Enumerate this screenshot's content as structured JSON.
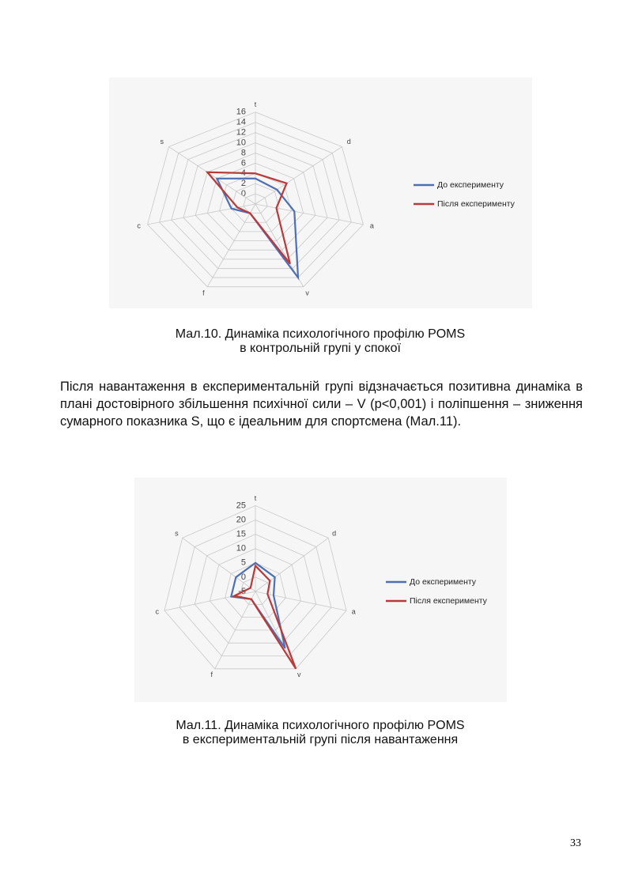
{
  "chart_data": [
    {
      "type": "radar",
      "categories": [
        "t",
        "d",
        "a",
        "v",
        "f",
        "c",
        "s"
      ],
      "ylim": [
        -2,
        16
      ],
      "yticks": [
        0,
        2,
        4,
        6,
        8,
        10,
        12,
        14,
        16
      ],
      "grid": true,
      "legend": "right",
      "series": [
        {
          "name": "До експерименту",
          "color": "#4f6fb5",
          "values": [
            3,
            2.5,
            4.5,
            14,
            0,
            2,
            6
          ]
        },
        {
          "name": "Після експерименту",
          "color": "#b83a3a",
          "values": [
            4,
            4.5,
            1.5,
            11,
            0,
            1,
            8
          ]
        }
      ],
      "caption": [
        "Мал.10. Динаміка психологічного профілю POMS",
        "в контрольній групі у спокої"
      ]
    },
    {
      "type": "radar",
      "categories": [
        "t",
        "d",
        "a",
        "v",
        "f",
        "c",
        "s"
      ],
      "ylim": [
        -5,
        25
      ],
      "yticks": [
        -5,
        0,
        5,
        10,
        15,
        20,
        25
      ],
      "grid": true,
      "legend": "right",
      "series": [
        {
          "name": "До експерименту",
          "color": "#4f6fb5",
          "values": [
            5,
            3,
            1,
            17,
            -2,
            3,
            3
          ]
        },
        {
          "name": "Після експерименту",
          "color": "#b83a3a",
          "values": [
            4,
            1,
            -1,
            25,
            -2,
            2,
            -3
          ]
        }
      ],
      "caption": [
        "Мал.11. Динаміка психологічного профілю POMS",
        "в експериментальній групі після навантаження"
      ]
    }
  ],
  "paragraph": "Після навантаження в експериментальній групі відзначається позитивна динаміка в плані достовірного збільшення психічної сили – V (p<0,001) і поліпшення – зниження сумарного показника S, що є ідеальним для спортсмена (Мал.11).",
  "page_number": "33"
}
